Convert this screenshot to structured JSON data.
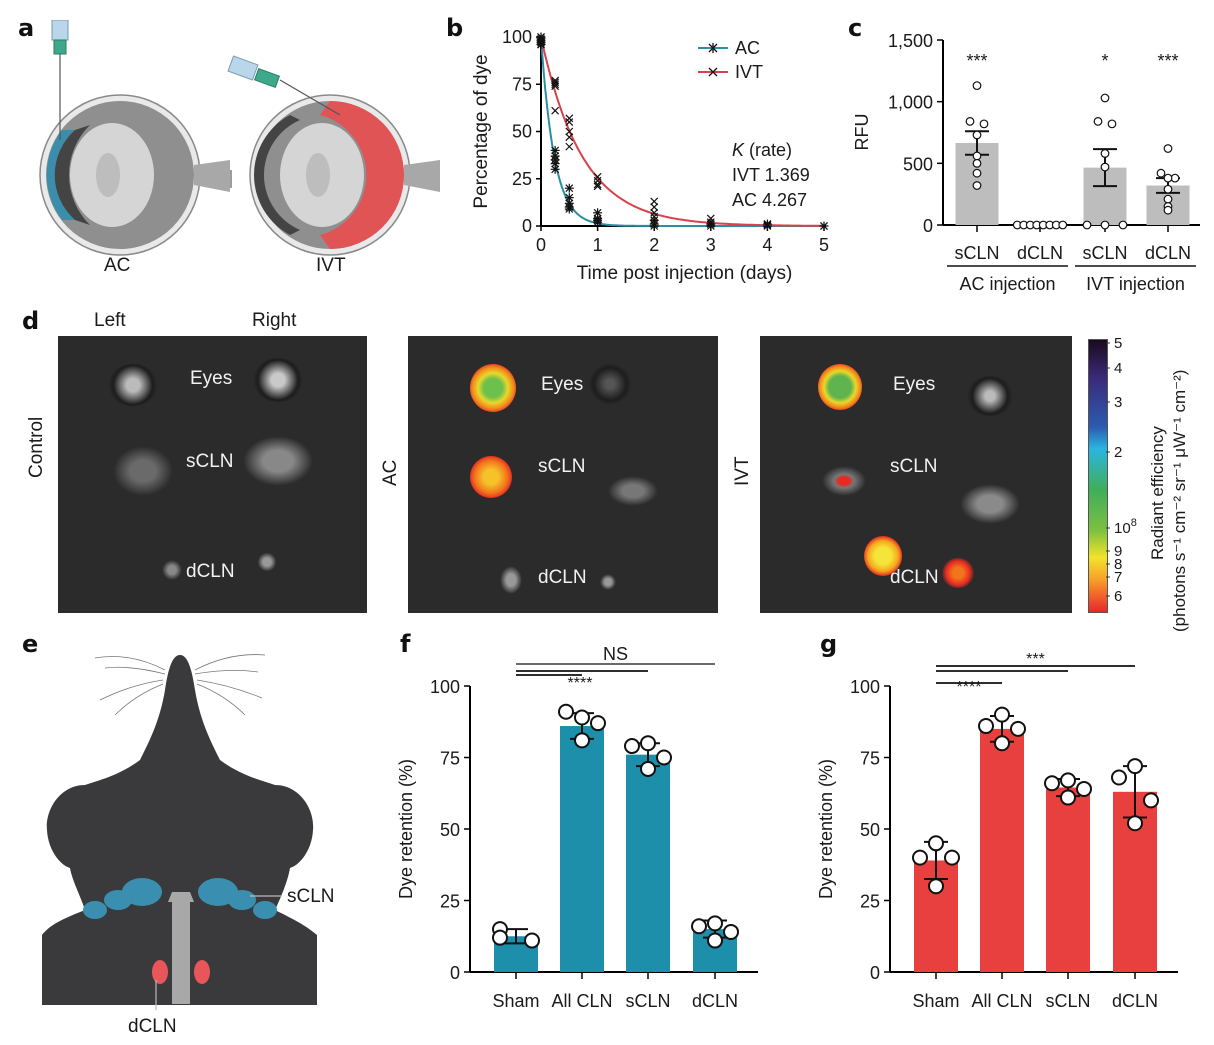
{
  "figure": {
    "panels": {
      "a": {
        "letter": "a",
        "labels": [
          "AC",
          "IVT"
        ],
        "colors": {
          "ac_dye": "#3b8eab",
          "ivt_dye": "#e05456",
          "eye_grey": "#b9b9b9"
        }
      },
      "b": {
        "letter": "b"
      },
      "c": {
        "letter": "c"
      },
      "d": {
        "letter": "d",
        "column_labels": [
          "Left",
          "Right"
        ],
        "row_labels": [
          "Control",
          "AC",
          "IVT"
        ],
        "structure_labels": [
          "Eyes",
          "sCLN",
          "dCLN"
        ],
        "colorbar": {
          "ticks": [
            "5",
            "4",
            "3",
            "2",
            "10",
            "9",
            "8",
            "7",
            "6"
          ],
          "exponent": "8",
          "title_line1": "Radiant efficiency",
          "title_line2": "(photons s⁻¹ cm⁻² sr⁻¹ μW⁻¹ cm⁻²)",
          "colors": [
            "#1a0a1e",
            "#3b2a7a",
            "#2c5bb0",
            "#2bb5e0",
            "#3fae5a",
            "#7cc040",
            "#f2e32a",
            "#f7a02a",
            "#e8262b"
          ]
        }
      },
      "e": {
        "letter": "e",
        "labels": [
          "sCLN",
          "dCLN"
        ],
        "colors": {
          "body": "#3a3a3c",
          "scln": "#3a8fb0",
          "dcln": "#e8565a",
          "trachea": "#a8a8a8"
        }
      },
      "f": {
        "letter": "f"
      },
      "g": {
        "letter": "g"
      }
    }
  },
  "chart_data": [
    {
      "id": "b",
      "type": "scatter",
      "title": "",
      "xlabel": "Time post injection (days)",
      "ylabel": "Percentage of dye",
      "xlim": [
        0,
        5
      ],
      "ylim": [
        0,
        100
      ],
      "xticks": [
        "0",
        "1",
        "2",
        "3",
        "4",
        "5"
      ],
      "yticks": [
        "0",
        "25",
        "50",
        "75",
        "100"
      ],
      "legend": {
        "position": "top-right",
        "entries": [
          {
            "name": "AC",
            "marker": "asterisk",
            "color": "#2a8fa0"
          },
          {
            "name": "IVT",
            "marker": "x",
            "color": "#d9424a"
          }
        ]
      },
      "annotation": {
        "title_italic": "K",
        "title_rest": " (rate)",
        "lines": [
          "IVT 1.369",
          "AC 4.267"
        ]
      },
      "series": [
        {
          "name": "AC",
          "rate": 4.267,
          "color": "#2a8fa0",
          "points": [
            [
              0,
              100
            ],
            [
              0,
              98
            ],
            [
              0,
              97
            ],
            [
              0,
              96
            ],
            [
              0,
              99
            ],
            [
              0.25,
              40
            ],
            [
              0.25,
              35
            ],
            [
              0.25,
              33
            ],
            [
              0.25,
              30
            ],
            [
              0.25,
              37
            ],
            [
              0.5,
              20
            ],
            [
              0.5,
              15
            ],
            [
              0.5,
              12
            ],
            [
              0.5,
              10
            ],
            [
              0.5,
              9
            ],
            [
              1,
              7
            ],
            [
              1,
              4
            ],
            [
              1,
              3
            ],
            [
              1,
              2
            ],
            [
              2,
              3
            ],
            [
              2,
              1
            ],
            [
              2,
              0
            ],
            [
              3,
              1
            ],
            [
              3,
              0
            ],
            [
              4,
              1
            ],
            [
              4,
              0
            ],
            [
              5,
              0
            ]
          ]
        },
        {
          "name": "IVT",
          "rate": 1.369,
          "color": "#d9424a",
          "points": [
            [
              0,
              100
            ],
            [
              0,
              98
            ],
            [
              0,
              96
            ],
            [
              0.25,
              77
            ],
            [
              0.25,
              76
            ],
            [
              0.25,
              75
            ],
            [
              0.25,
              74
            ],
            [
              0.25,
              61
            ],
            [
              0.5,
              57
            ],
            [
              0.5,
              55
            ],
            [
              0.5,
              50
            ],
            [
              0.5,
              47
            ],
            [
              0.5,
              42
            ],
            [
              1,
              26
            ],
            [
              1,
              24
            ],
            [
              1,
              22
            ],
            [
              1,
              21
            ],
            [
              2,
              13
            ],
            [
              2,
              10
            ],
            [
              2,
              7
            ],
            [
              2,
              5
            ],
            [
              3,
              4
            ],
            [
              3,
              2
            ],
            [
              4,
              1
            ],
            [
              4,
              0.5
            ],
            [
              5,
              0
            ]
          ]
        }
      ]
    },
    {
      "id": "c",
      "type": "bar",
      "ylabel": "RFU",
      "ylim": [
        0,
        1500
      ],
      "yticks": [
        "0",
        "500",
        "1,000",
        "1,500"
      ],
      "categories": [
        "sCLN",
        "dCLN",
        "sCLN",
        "dCLN"
      ],
      "groups": [
        {
          "label": "AC injection",
          "span": [
            0,
            1
          ]
        },
        {
          "label": "IVT injection",
          "span": [
            2,
            3
          ]
        }
      ],
      "bar_color": "#bdbdbd",
      "series": [
        {
          "name": "RFU",
          "values": [
            665,
            0,
            465,
            320
          ],
          "sem": [
            95,
            0,
            150,
            60
          ],
          "points": [
            [
              1130,
              840,
              820,
              730,
              560,
              500,
              420,
              320
            ],
            [
              0,
              0,
              0,
              0,
              0,
              0,
              0,
              0
            ],
            [
              1030,
              840,
              820,
              580,
              470,
              0,
              0,
              0
            ],
            [
              620,
              420,
              380,
              380,
              290,
              210,
              150,
              120
            ]
          ],
          "significance": [
            "***",
            "",
            "*",
            "***"
          ]
        }
      ]
    },
    {
      "id": "f",
      "type": "bar",
      "ylabel": "Dye retention (%)",
      "ylim": [
        0,
        100
      ],
      "yticks": [
        "0",
        "25",
        "50",
        "75",
        "100"
      ],
      "categories": [
        "Sham",
        "All CLN",
        "sCLN",
        "dCLN"
      ],
      "bar_color": "#1e8fab",
      "series": [
        {
          "name": "Dye retention",
          "values": [
            12.5,
            86,
            76,
            15
          ],
          "sd": [
            2.5,
            4.5,
            4,
            3
          ],
          "points": [
            [
              15,
              12,
              11
            ],
            [
              89,
              91,
              87,
              81
            ],
            [
              80,
              79,
              75,
              71
            ],
            [
              17,
              16,
              14,
              11
            ]
          ]
        }
      ],
      "significance": [
        {
          "from": 0,
          "to": 3,
          "label": "NS"
        },
        {
          "from": 0,
          "to": 2,
          "label": "****"
        },
        {
          "from": 0,
          "to": 1,
          "label": ""
        }
      ]
    },
    {
      "id": "g",
      "type": "bar",
      "ylabel": "Dye retention (%)",
      "ylim": [
        0,
        100
      ],
      "yticks": [
        "0",
        "25",
        "50",
        "75",
        "100"
      ],
      "categories": [
        "Sham",
        "All CLN",
        "sCLN",
        "dCLN"
      ],
      "bar_color": "#e8403e",
      "series": [
        {
          "name": "Dye retention",
          "values": [
            39,
            85,
            64.5,
            63
          ],
          "sd": [
            6.5,
            4.5,
            3,
            9
          ],
          "points": [
            [
              45,
              40,
              40,
              30
            ],
            [
              90,
              86,
              85,
              80
            ],
            [
              67,
              66,
              64,
              61
            ],
            [
              72,
              68,
              60,
              52
            ]
          ]
        }
      ],
      "significance": [
        {
          "from": 0,
          "to": 3,
          "label": "***"
        },
        {
          "from": 0,
          "to": 2,
          "label": ""
        },
        {
          "from": 0,
          "to": 1,
          "label": "****"
        }
      ]
    }
  ]
}
